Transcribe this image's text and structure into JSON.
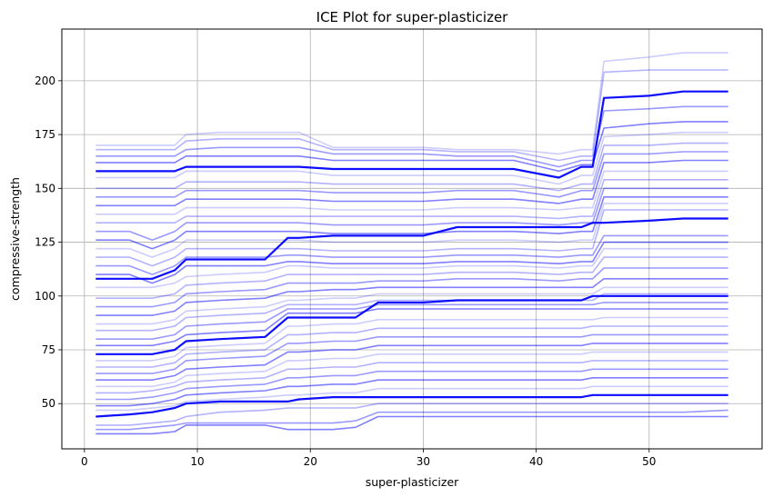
{
  "chart_data": {
    "type": "line",
    "title": "ICE Plot for super-plasticizer",
    "xlabel": "super-plasticizer",
    "ylabel": "compressive-strength",
    "xlim": [
      -2.0,
      60.0
    ],
    "ylim": [
      29.0,
      224.0
    ],
    "x_ticks": [
      0,
      10,
      20,
      30,
      40,
      50
    ],
    "y_ticks": [
      50,
      75,
      100,
      125,
      150,
      175,
      200
    ],
    "grid": true,
    "line_color": "#0000ff",
    "x": [
      1,
      4,
      6,
      8,
      9,
      12,
      16,
      18,
      19,
      22,
      24,
      26,
      30,
      33,
      38,
      42,
      44,
      45,
      46,
      50,
      53,
      57
    ],
    "series": [
      {
        "values": [
          158,
          158,
          158,
          158,
          160,
          160,
          160,
          160,
          160,
          159,
          159,
          159,
          159,
          159,
          159,
          155,
          160,
          160,
          192,
          193,
          195,
          195
        ],
        "emphasis": true
      },
      {
        "values": [
          108,
          108,
          108,
          112,
          117,
          117,
          117,
          127,
          127,
          128,
          128,
          128,
          128,
          132,
          132,
          132,
          132,
          134,
          134,
          135,
          136,
          136
        ],
        "emphasis": true
      },
      {
        "values": [
          73,
          73,
          73,
          75,
          79,
          80,
          81,
          90,
          90,
          90,
          90,
          97,
          97,
          98,
          98,
          98,
          98,
          100,
          100,
          100,
          100,
          100
        ],
        "emphasis": true
      },
      {
        "values": [
          44,
          45,
          46,
          48,
          50,
          51,
          51,
          51,
          52,
          53,
          53,
          53,
          53,
          53,
          53,
          53,
          53,
          54,
          54,
          54,
          54,
          54
        ],
        "emphasis": true
      },
      {
        "values": [
          170,
          170,
          170,
          170,
          175,
          176,
          176,
          176,
          176,
          169,
          169,
          169,
          169,
          168,
          168,
          166,
          168,
          168,
          209,
          211,
          213,
          213
        ]
      },
      {
        "values": [
          168,
          168,
          168,
          168,
          172,
          173,
          173,
          173,
          173,
          168,
          168,
          168,
          168,
          167,
          167,
          163,
          165,
          165,
          204,
          205,
          205,
          205
        ]
      },
      {
        "values": [
          165,
          165,
          165,
          165,
          168,
          169,
          169,
          169,
          169,
          166,
          166,
          166,
          166,
          165,
          165,
          160,
          163,
          163,
          186,
          187,
          188,
          188
        ]
      },
      {
        "values": [
          162,
          162,
          162,
          162,
          165,
          165,
          165,
          165,
          165,
          163,
          163,
          163,
          163,
          163,
          163,
          158,
          161,
          161,
          178,
          180,
          181,
          181
        ]
      },
      {
        "values": [
          155,
          155,
          155,
          155,
          158,
          158,
          158,
          158,
          158,
          156,
          156,
          156,
          156,
          156,
          156,
          152,
          156,
          156,
          174,
          175,
          176,
          176
        ]
      },
      {
        "values": [
          150,
          150,
          150,
          150,
          153,
          153,
          153,
          153,
          153,
          152,
          152,
          152,
          152,
          152,
          152,
          149,
          152,
          152,
          170,
          170,
          171,
          171
        ]
      },
      {
        "values": [
          146,
          146,
          146,
          146,
          149,
          149,
          149,
          149,
          149,
          148,
          148,
          148,
          148,
          149,
          149,
          146,
          149,
          149,
          166,
          166,
          167,
          167
        ]
      },
      {
        "values": [
          142,
          142,
          142,
          142,
          145,
          145,
          145,
          145,
          145,
          144,
          144,
          144,
          144,
          145,
          145,
          143,
          145,
          145,
          162,
          162,
          163,
          163
        ]
      },
      {
        "values": [
          138,
          138,
          138,
          138,
          141,
          141,
          141,
          141,
          141,
          140,
          140,
          140,
          140,
          141,
          141,
          140,
          141,
          141,
          158,
          158,
          158,
          158
        ]
      },
      {
        "values": [
          134,
          134,
          134,
          134,
          137,
          137,
          137,
          137,
          137,
          137,
          137,
          137,
          137,
          137,
          137,
          136,
          137,
          137,
          154,
          154,
          154,
          154
        ]
      },
      {
        "values": [
          130,
          130,
          126,
          130,
          134,
          134,
          134,
          134,
          134,
          133,
          133,
          133,
          133,
          134,
          134,
          133,
          134,
          134,
          150,
          150,
          150,
          150
        ]
      },
      {
        "values": [
          126,
          126,
          122,
          126,
          130,
          130,
          130,
          130,
          130,
          129,
          129,
          129,
          129,
          130,
          130,
          129,
          130,
          130,
          146,
          146,
          146,
          146
        ]
      },
      {
        "values": [
          122,
          122,
          118,
          122,
          126,
          126,
          126,
          126,
          126,
          125,
          125,
          125,
          125,
          126,
          126,
          125,
          126,
          126,
          143,
          143,
          143,
          143
        ]
      },
      {
        "values": [
          118,
          118,
          114,
          118,
          122,
          122,
          122,
          122,
          122,
          121,
          121,
          121,
          121,
          122,
          122,
          121,
          122,
          122,
          140,
          140,
          140,
          140
        ]
      },
      {
        "values": [
          114,
          114,
          110,
          114,
          118,
          118,
          118,
          119,
          119,
          118,
          118,
          118,
          118,
          119,
          119,
          118,
          119,
          119,
          128,
          128,
          128,
          128
        ]
      },
      {
        "values": [
          110,
          110,
          106,
          110,
          114,
          114,
          114,
          116,
          116,
          115,
          115,
          115,
          115,
          116,
          116,
          115,
          116,
          116,
          125,
          125,
          125,
          125
        ]
      },
      {
        "values": [
          104,
          104,
          104,
          106,
          109,
          110,
          111,
          114,
          114,
          113,
          113,
          113,
          113,
          114,
          114,
          113,
          114,
          114,
          122,
          122,
          122,
          122
        ]
      },
      {
        "values": [
          99,
          99,
          99,
          101,
          105,
          106,
          107,
          110,
          110,
          110,
          110,
          110,
          110,
          111,
          111,
          110,
          111,
          111,
          118,
          118,
          118,
          118
        ]
      },
      {
        "values": [
          95,
          95,
          95,
          97,
          101,
          102,
          103,
          106,
          106,
          106,
          106,
          107,
          107,
          108,
          108,
          107,
          108,
          108,
          113,
          113,
          113,
          113
        ]
      },
      {
        "values": [
          91,
          91,
          91,
          93,
          97,
          98,
          99,
          102,
          102,
          103,
          103,
          104,
          104,
          104,
          104,
          104,
          104,
          104,
          108,
          108,
          108,
          108
        ]
      },
      {
        "values": [
          87,
          87,
          87,
          89,
          93,
          94,
          95,
          98,
          98,
          99,
          99,
          101,
          101,
          101,
          101,
          101,
          101,
          101,
          104,
          104,
          104,
          104
        ]
      },
      {
        "values": [
          84,
          84,
          84,
          86,
          90,
          91,
          92,
          96,
          96,
          96,
          96,
          98,
          98,
          98,
          98,
          98,
          98,
          98,
          101,
          101,
          101,
          101
        ]
      },
      {
        "values": [
          80,
          80,
          80,
          82,
          86,
          87,
          88,
          94,
          94,
          94,
          94,
          96,
          96,
          96,
          96,
          96,
          96,
          96,
          97,
          97,
          97,
          97
        ]
      },
      {
        "values": [
          77,
          77,
          77,
          79,
          82,
          83,
          84,
          92,
          92,
          92,
          92,
          94,
          94,
          94,
          94,
          94,
          94,
          94,
          94,
          94,
          94,
          94
        ]
      },
      {
        "values": [
          70,
          70,
          70,
          72,
          76,
          77,
          78,
          86,
          86,
          87,
          87,
          89,
          89,
          89,
          89,
          89,
          89,
          89,
          90,
          90,
          90,
          90
        ]
      },
      {
        "values": [
          67,
          67,
          67,
          69,
          73,
          74,
          75,
          82,
          82,
          83,
          83,
          85,
          85,
          85,
          85,
          85,
          85,
          86,
          86,
          86,
          86,
          86
        ]
      },
      {
        "values": [
          64,
          64,
          64,
          66,
          70,
          71,
          72,
          78,
          78,
          79,
          79,
          81,
          81,
          81,
          81,
          81,
          81,
          82,
          82,
          82,
          82,
          82
        ]
      },
      {
        "values": [
          61,
          61,
          61,
          63,
          66,
          67,
          68,
          74,
          74,
          75,
          75,
          77,
          77,
          77,
          77,
          77,
          77,
          78,
          78,
          78,
          78,
          78
        ]
      },
      {
        "values": [
          58,
          58,
          58,
          60,
          63,
          64,
          65,
          70,
          70,
          71,
          71,
          73,
          73,
          73,
          73,
          73,
          73,
          74,
          74,
          74,
          74,
          74
        ]
      },
      {
        "values": [
          55,
          55,
          56,
          58,
          60,
          61,
          62,
          66,
          66,
          67,
          67,
          69,
          69,
          69,
          69,
          69,
          69,
          70,
          70,
          70,
          70,
          70
        ]
      },
      {
        "values": [
          52,
          52,
          53,
          55,
          57,
          58,
          59,
          62,
          62,
          63,
          63,
          65,
          65,
          65,
          65,
          65,
          65,
          66,
          66,
          66,
          66,
          66
        ]
      },
      {
        "values": [
          49,
          49,
          50,
          52,
          54,
          55,
          56,
          58,
          58,
          59,
          59,
          61,
          61,
          61,
          61,
          61,
          61,
          62,
          62,
          62,
          62,
          62
        ]
      },
      {
        "values": [
          47,
          47,
          48,
          49,
          51,
          52,
          53,
          54,
          54,
          55,
          55,
          57,
          57,
          57,
          57,
          57,
          57,
          58,
          58,
          58,
          58,
          58
        ]
      },
      {
        "values": [
          40,
          40,
          41,
          42,
          44,
          46,
          47,
          48,
          48,
          48,
          48,
          50,
          50,
          50,
          50,
          50,
          50,
          50,
          50,
          50,
          50,
          50
        ]
      },
      {
        "values": [
          38,
          38,
          39,
          40,
          41,
          41,
          41,
          41,
          41,
          41,
          42,
          46,
          46,
          46,
          46,
          46,
          46,
          46,
          46,
          46,
          46,
          47
        ]
      },
      {
        "values": [
          36,
          36,
          36,
          37,
          40,
          40,
          40,
          38,
          38,
          38,
          39,
          44,
          44,
          44,
          44,
          44,
          44,
          44,
          44,
          44,
          44,
          44
        ]
      }
    ]
  }
}
